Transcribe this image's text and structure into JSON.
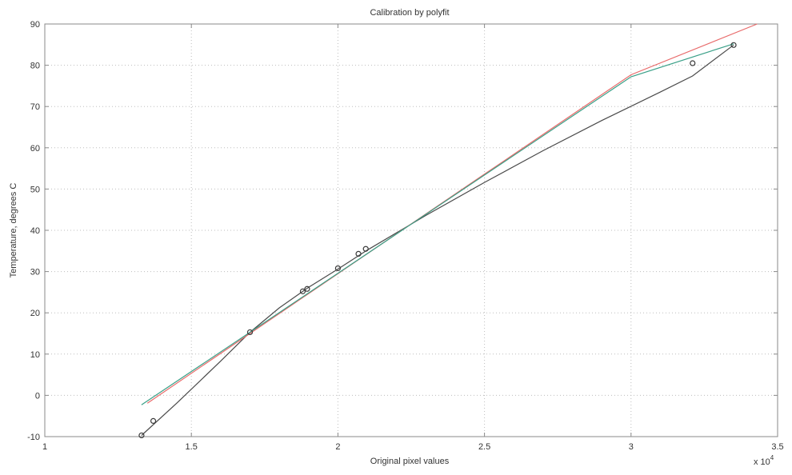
{
  "chart_data": {
    "type": "line",
    "title": "Calibration by polyfit",
    "xlabel": "Original pixel values",
    "ylabel": "Temperature, degrees C",
    "x_exponent_label": "x 10",
    "x_exponent_power": "4",
    "xlim": [
      1,
      3.5
    ],
    "ylim": [
      -10,
      90
    ],
    "x_ticks": [
      1,
      1.5,
      2,
      2.5,
      3,
      3.5
    ],
    "x_tick_labels": [
      "1",
      "1.5",
      "2",
      "2.5",
      "3",
      "3.5"
    ],
    "y_ticks": [
      -10,
      0,
      10,
      20,
      30,
      40,
      50,
      60,
      70,
      80,
      90
    ],
    "y_tick_labels": [
      "-10",
      "0",
      "10",
      "20",
      "30",
      "40",
      "50",
      "60",
      "70",
      "80",
      "90"
    ],
    "grid": true,
    "series": [
      {
        "kind": "markers",
        "color": "#3a3a3a",
        "x": [
          1.33,
          1.37,
          1.7,
          1.88,
          1.895,
          2.0,
          2.07,
          2.095,
          3.21,
          3.35
        ],
        "y": [
          -9.7,
          -6.2,
          15.3,
          25.2,
          25.8,
          30.8,
          34.3,
          35.5,
          80.5,
          84.9
        ]
      },
      {
        "kind": "line",
        "color": "#4a4a4a",
        "x": [
          1.33,
          1.45,
          1.6,
          1.7,
          1.8,
          1.9,
          2.0,
          2.1,
          2.3,
          2.5,
          2.7,
          2.9,
          3.1,
          3.21,
          3.35
        ],
        "y": [
          -9.7,
          -1.9,
          8.3,
          15.3,
          21.2,
          26.2,
          30.6,
          35.2,
          43.6,
          51.6,
          59.3,
          66.6,
          73.5,
          77.4,
          84.9
        ]
      },
      {
        "kind": "line",
        "color": "#e86a6a",
        "x": [
          1.35,
          1.7,
          2.0,
          2.5,
          3.0,
          3.43
        ],
        "y": [
          -1.9,
          15.0,
          29.5,
          53.6,
          77.7,
          90.0
        ]
      },
      {
        "kind": "line",
        "color": "#3aa088",
        "x": [
          1.33,
          1.7,
          2.0,
          2.5,
          3.0,
          3.35
        ],
        "y": [
          -2.3,
          15.3,
          29.6,
          53.4,
          77.2,
          85.2
        ]
      }
    ]
  }
}
